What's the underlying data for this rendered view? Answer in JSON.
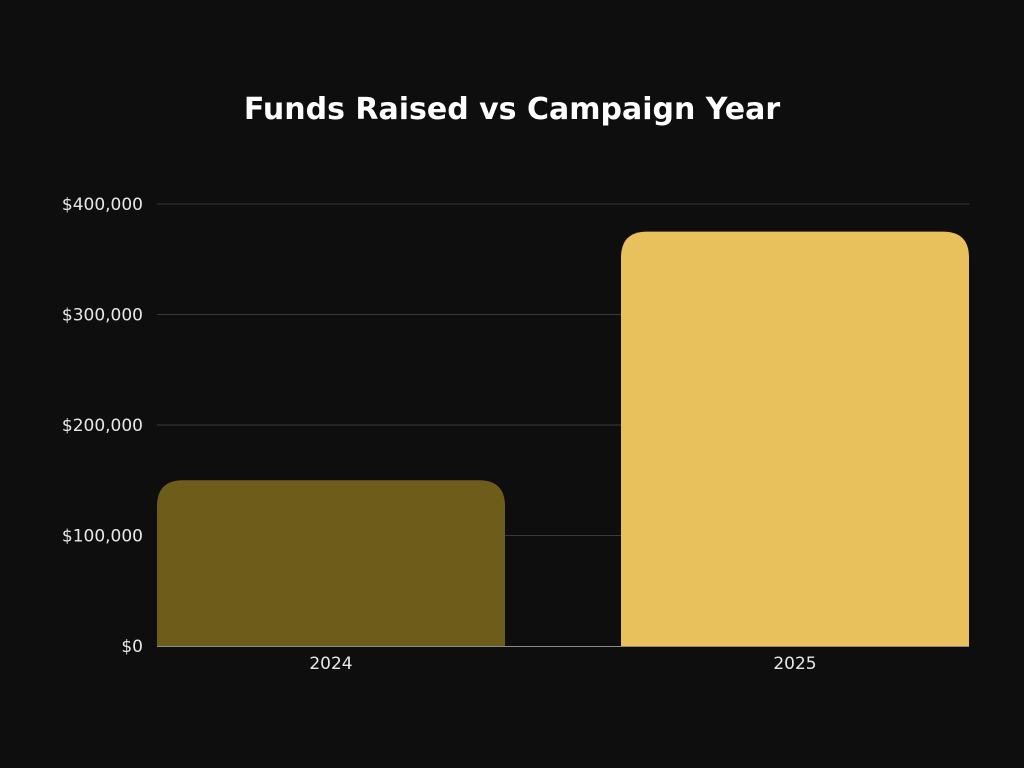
{
  "chart_data": {
    "type": "bar",
    "title": "Funds Raised vs Campaign Year",
    "xlabel": "",
    "ylabel": "",
    "categories": [
      "2024",
      "2025"
    ],
    "values": [
      150000,
      375000
    ],
    "colors": [
      "#6e5c1b",
      "#e8c15c"
    ],
    "ylim": [
      0,
      400000
    ],
    "yticks": [
      0,
      100000,
      200000,
      300000,
      400000
    ],
    "ytick_labels": [
      "$0",
      "$100,000",
      "$200,000",
      "$300,000",
      "$400,000"
    ],
    "grid": true,
    "legend": "none",
    "background": "#0e0e0e",
    "grid_color": "#3a3a3a",
    "text_color": "#e8e8e8"
  }
}
